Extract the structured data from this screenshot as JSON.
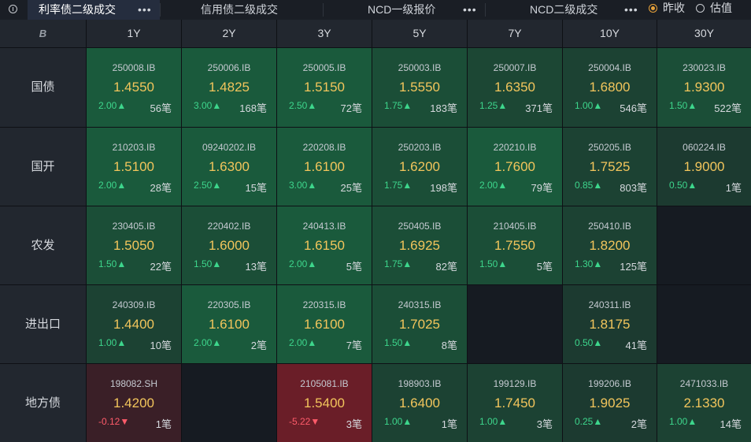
{
  "tabs": [
    {
      "label": "利率债二级成交",
      "active": true
    },
    {
      "label": "信用债二级成交",
      "active": false
    },
    {
      "label": "NCD一级报价",
      "active": false
    },
    {
      "label": "NCD二级成交",
      "active": false
    }
  ],
  "more_label": "•••",
  "radio": [
    {
      "label": "昨收",
      "selected": true
    },
    {
      "label": "估值",
      "selected": false
    }
  ],
  "corner_label": "B",
  "columns": [
    "1Y",
    "2Y",
    "3Y",
    "5Y",
    "7Y",
    "10Y",
    "30Y"
  ],
  "rows": [
    "国债",
    "国开",
    "农发",
    "进出口",
    "地方债"
  ],
  "cells": [
    [
      {
        "code": "250008.IB",
        "price": "1.4550",
        "change": "2.00▲",
        "count": "56笔",
        "trend": "up",
        "bg": "#1a5a3c"
      },
      {
        "code": "250006.IB",
        "price": "1.4825",
        "change": "3.00▲",
        "count": "168笔",
        "trend": "up",
        "bg": "#1a5a3c"
      },
      {
        "code": "250005.IB",
        "price": "1.5150",
        "change": "2.50▲",
        "count": "72笔",
        "trend": "up",
        "bg": "#1a5a3c"
      },
      {
        "code": "250003.IB",
        "price": "1.5550",
        "change": "1.75▲",
        "count": "183笔",
        "trend": "up",
        "bg": "#1b4e37"
      },
      {
        "code": "250007.IB",
        "price": "1.6350",
        "change": "1.25▲",
        "count": "371笔",
        "trend": "up",
        "bg": "#1c4734"
      },
      {
        "code": "250004.IB",
        "price": "1.6800",
        "change": "1.00▲",
        "count": "546笔",
        "trend": "up",
        "bg": "#1c4233"
      },
      {
        "code": "230023.IB",
        "price": "1.9300",
        "change": "1.50▲",
        "count": "522笔",
        "trend": "up",
        "bg": "#1b4e37"
      }
    ],
    [
      {
        "code": "210203.IB",
        "price": "1.5100",
        "change": "2.00▲",
        "count": "28笔",
        "trend": "up",
        "bg": "#1a5a3c"
      },
      {
        "code": "09240202.IB",
        "price": "1.6300",
        "change": "2.50▲",
        "count": "15笔",
        "trend": "up",
        "bg": "#1a5a3c"
      },
      {
        "code": "220208.IB",
        "price": "1.6100",
        "change": "3.00▲",
        "count": "25笔",
        "trend": "up",
        "bg": "#1a5a3c"
      },
      {
        "code": "250203.IB",
        "price": "1.6200",
        "change": "1.75▲",
        "count": "198笔",
        "trend": "up",
        "bg": "#1b4e37"
      },
      {
        "code": "220210.IB",
        "price": "1.7600",
        "change": "2.00▲",
        "count": "79笔",
        "trend": "up",
        "bg": "#1a5a3c"
      },
      {
        "code": "250205.IB",
        "price": "1.7525",
        "change": "0.85▲",
        "count": "803笔",
        "trend": "up",
        "bg": "#1c4233"
      },
      {
        "code": "060224.IB",
        "price": "1.9000",
        "change": "0.50▲",
        "count": "1笔",
        "trend": "up",
        "bg": "#1c3a30"
      }
    ],
    [
      {
        "code": "230405.IB",
        "price": "1.5050",
        "change": "1.50▲",
        "count": "22笔",
        "trend": "up",
        "bg": "#1b4e37"
      },
      {
        "code": "220402.IB",
        "price": "1.6000",
        "change": "1.50▲",
        "count": "13笔",
        "trend": "up",
        "bg": "#1b4e37"
      },
      {
        "code": "240413.IB",
        "price": "1.6150",
        "change": "2.00▲",
        "count": "5笔",
        "trend": "up",
        "bg": "#1a5a3c"
      },
      {
        "code": "250405.IB",
        "price": "1.6925",
        "change": "1.75▲",
        "count": "82笔",
        "trend": "up",
        "bg": "#1b4e37"
      },
      {
        "code": "210405.IB",
        "price": "1.7550",
        "change": "1.50▲",
        "count": "5笔",
        "trend": "up",
        "bg": "#1b4e37"
      },
      {
        "code": "250410.IB",
        "price": "1.8200",
        "change": "1.30▲",
        "count": "125笔",
        "trend": "up",
        "bg": "#1c4233"
      },
      null
    ],
    [
      {
        "code": "240309.IB",
        "price": "1.4400",
        "change": "1.00▲",
        "count": "10笔",
        "trend": "up",
        "bg": "#1c4233"
      },
      {
        "code": "220305.IB",
        "price": "1.6100",
        "change": "2.00▲",
        "count": "2笔",
        "trend": "up",
        "bg": "#1a5a3c"
      },
      {
        "code": "220315.IB",
        "price": "1.6100",
        "change": "2.00▲",
        "count": "7笔",
        "trend": "up",
        "bg": "#1a5a3c"
      },
      {
        "code": "240315.IB",
        "price": "1.7025",
        "change": "1.50▲",
        "count": "8笔",
        "trend": "up",
        "bg": "#1b4e37"
      },
      null,
      {
        "code": "240311.IB",
        "price": "1.8175",
        "change": "0.50▲",
        "count": "41笔",
        "trend": "up",
        "bg": "#1c3a30"
      },
      null
    ],
    [
      {
        "code": "198082.SH",
        "price": "1.4200",
        "change": "-0.12▼",
        "count": "1笔",
        "trend": "down",
        "bg": "#3a1f27"
      },
      null,
      {
        "code": "2105081.IB",
        "price": "1.5400",
        "change": "-5.22▼",
        "count": "3笔",
        "trend": "down",
        "bg": "#6a1e28"
      },
      {
        "code": "198903.IB",
        "price": "1.6400",
        "change": "1.00▲",
        "count": "1笔",
        "trend": "up",
        "bg": "#1c4233"
      },
      {
        "code": "199129.IB",
        "price": "1.7450",
        "change": "1.00▲",
        "count": "3笔",
        "trend": "up",
        "bg": "#1c4233"
      },
      {
        "code": "199206.IB",
        "price": "1.9025",
        "change": "0.25▲",
        "count": "2笔",
        "trend": "up",
        "bg": "#1c3a30"
      },
      {
        "code": "2471033.IB",
        "price": "2.1330",
        "change": "1.00▲",
        "count": "14笔",
        "trend": "up",
        "bg": "#1c4233"
      }
    ]
  ],
  "empty_bg": "#161b22"
}
